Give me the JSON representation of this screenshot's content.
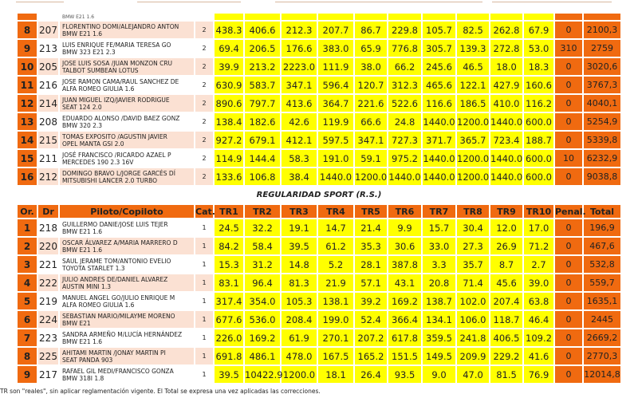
{
  "top_table": {
    "partial_row": {
      "vehicle": "BMW E21 1.6"
    },
    "rows": [
      {
        "or": "8",
        "dr": "207",
        "piloto": "FLORENTINO DOMI/ALEJANDRO ANTON",
        "coche": "BMW E21 1.6",
        "cat": "2",
        "tr": [
          "438.3",
          "406.6",
          "212.3",
          "207.7",
          "86.7",
          "229.8",
          "105.7",
          "82.5",
          "262.8",
          "67.9"
        ],
        "penal": "0",
        "total": "2100,3"
      },
      {
        "or": "9",
        "dr": "213",
        "piloto": "LUIS ENRIQUE FE/MARIA TERESA GO",
        "coche": "BMW 323 E21 2.3",
        "cat": "2",
        "tr": [
          "69.4",
          "206.5",
          "176.6",
          "383.0",
          "65.9",
          "776.8",
          "305.7",
          "139.3",
          "272.8",
          "53.0"
        ],
        "penal": "310",
        "total": "2759"
      },
      {
        "or": "10",
        "dr": "205",
        "piloto": "JOSE LUIS SOSA /JUAN MONZON CRU",
        "coche": "TALBOT SUMBEAN LOTUS",
        "cat": "2",
        "tr": [
          "39.9",
          "213.2",
          "2223.0",
          "111.9",
          "38.0",
          "66.2",
          "245.6",
          "46.5",
          "18.0",
          "18.3"
        ],
        "penal": "0",
        "total": "3020,6"
      },
      {
        "or": "11",
        "dr": "216",
        "piloto": "JOSE RAMON CAMA/RAUL SANCHEZ DE",
        "coche": "ALFA ROMEO GIULIA 1.6",
        "cat": "2",
        "tr": [
          "630.9",
          "583.7",
          "347.1",
          "596.4",
          "120.7",
          "312.3",
          "465.6",
          "122.1",
          "427.9",
          "160.6"
        ],
        "penal": "0",
        "total": "3767,3"
      },
      {
        "or": "12",
        "dr": "214",
        "piloto": "JUAN MIGUEL IZQ/JAVIER RODRIGUE",
        "coche": "SEAT 124 2.0",
        "cat": "2",
        "tr": [
          "890.6",
          "797.7",
          "413.6",
          "364.7",
          "221.6",
          "522.6",
          "116.6",
          "186.5",
          "410.0",
          "116.2"
        ],
        "penal": "0",
        "total": "4040,1"
      },
      {
        "or": "13",
        "dr": "208",
        "piloto": "EDUARDO ALONSO /DAVID BAEZ GONZ",
        "coche": "BMW 320 2.3",
        "cat": "2",
        "tr": [
          "138.4",
          "182.6",
          "42.6",
          "119.9",
          "66.6",
          "24.8",
          "1440.0",
          "1200.0",
          "1440.0",
          "600.0"
        ],
        "penal": "0",
        "total": "5254,9"
      },
      {
        "or": "14",
        "dr": "215",
        "piloto": "TOMAS EXPOSITO /AGUSTIN JAVIER",
        "coche": "OPEL MANTA GSI 2.0",
        "cat": "2",
        "tr": [
          "927.2",
          "679.1",
          "412.1",
          "597.5",
          "347.1",
          "727.3",
          "371.7",
          "365.7",
          "723.4",
          "188.7"
        ],
        "penal": "0",
        "total": "5339,8"
      },
      {
        "or": "15",
        "dr": "211",
        "piloto": "JOSÉ FRANCISCO /RICARDO AZAEL P",
        "coche": "MERCEDES 190 2.3 16V",
        "cat": "2",
        "tr": [
          "114.9",
          "144.4",
          "58.3",
          "191.0",
          "59.1",
          "975.2",
          "1440.0",
          "1200.0",
          "1440.0",
          "600.0"
        ],
        "penal": "10",
        "total": "6232,9"
      },
      {
        "or": "16",
        "dr": "212",
        "piloto": "DOMINGO BRAVO L/JORGE GARCÉS DÍ",
        "coche": "MITSUBISHI LANCER 2.0 TURBO",
        "cat": "2",
        "tr": [
          "133.6",
          "106.8",
          "38.4",
          "1440.0",
          "1200.0",
          "1440.0",
          "1440.0",
          "1200.0",
          "1440.0",
          "600.0"
        ],
        "penal": "0",
        "total": "9038,8"
      }
    ]
  },
  "section_title": "REGULARIDAD SPORT (R.S.)",
  "bottom_table": {
    "headers": [
      "Or.",
      "Dr",
      "Piloto/Copiloto",
      "Cat.",
      "TR1",
      "TR2",
      "TR3",
      "TR4",
      "TR5",
      "TR6",
      "TR7",
      "TR8",
      "TR9",
      "TR10",
      "Penal.",
      "Total"
    ],
    "rows": [
      {
        "or": "1",
        "dr": "218",
        "piloto": "GUILLERMO DANIE/JOSE LUIS TEJER",
        "coche": "BMW E21 1.6",
        "cat": "1",
        "tr": [
          "24.5",
          "32.2",
          "19.1",
          "14.7",
          "21.4",
          "9.9",
          "15.7",
          "30.4",
          "12.0",
          "17.0"
        ],
        "penal": "0",
        "total": "196,9"
      },
      {
        "or": "2",
        "dr": "220",
        "piloto": "OSCAR ÁLVAREZ A/MARIA MARRERO D",
        "coche": "BMW E21 1.6",
        "cat": "1",
        "tr": [
          "84.2",
          "58.4",
          "39.5",
          "61.2",
          "35.3",
          "30.6",
          "33.0",
          "27.3",
          "26.9",
          "71.2"
        ],
        "penal": "0",
        "total": "467,6"
      },
      {
        "or": "3",
        "dr": "221",
        "piloto": "SAUL JERAME TOM/ANTONIO EVELIO",
        "coche": "TOYOTA STARLET 1.3",
        "cat": "1",
        "tr": [
          "15.3",
          "31.2",
          "14.8",
          "5.2",
          "28.1",
          "387.8",
          "3.3",
          "35.7",
          "8.7",
          "2.7"
        ],
        "penal": "0",
        "total": "532,8"
      },
      {
        "or": "4",
        "dr": "222",
        "piloto": "JULIO ANDRES DE/DANIEL ALVAREZ",
        "coche": "AUSTIN MINI 1.3",
        "cat": "1",
        "tr": [
          "83.1",
          "96.4",
          "81.3",
          "21.9",
          "57.1",
          "43.1",
          "20.8",
          "71.4",
          "45.6",
          "39.0"
        ],
        "penal": "0",
        "total": "559,7"
      },
      {
        "or": "5",
        "dr": "219",
        "piloto": "MANUEL ANGEL GO/JULIO ENRIQUE M",
        "coche": "ALFA ROMEO GIULIA 1.6",
        "cat": "1",
        "tr": [
          "317.4",
          "354.0",
          "105.3",
          "138.1",
          "39.2",
          "169.2",
          "138.7",
          "102.0",
          "207.4",
          "63.8"
        ],
        "penal": "0",
        "total": "1635,1"
      },
      {
        "or": "6",
        "dr": "224",
        "piloto": "SEBASTIAN MARIO/MILAYME MORENO",
        "coche": "BMW E21",
        "cat": "1",
        "tr": [
          "677.6",
          "536.0",
          "208.4",
          "199.0",
          "52.4",
          "366.4",
          "134.1",
          "106.0",
          "118.7",
          "46.4"
        ],
        "penal": "0",
        "total": "2445"
      },
      {
        "or": "7",
        "dr": "223",
        "piloto": "SANDRA ARMEÑO M/LUCÍA HERNÁNDEZ",
        "coche": "BMW E21 1.6",
        "cat": "1",
        "tr": [
          "226.0",
          "169.2",
          "61.9",
          "270.1",
          "207.2",
          "617.8",
          "359.5",
          "241.8",
          "406.5",
          "109.2"
        ],
        "penal": "0",
        "total": "2669,2"
      },
      {
        "or": "8",
        "dr": "225",
        "piloto": "AHITAMI MARTIN /JONAY MARTIN PI",
        "coche": "SEAT PANDA 903",
        "cat": "1",
        "tr": [
          "691.8",
          "486.1",
          "478.0",
          "167.5",
          "165.2",
          "151.5",
          "149.5",
          "209.9",
          "229.2",
          "41.6"
        ],
        "penal": "0",
        "total": "2770,3"
      },
      {
        "or": "9",
        "dr": "217",
        "piloto": "RAFAEL GIL MEDI/FRANCISCO GONZA",
        "coche": "BMW 318I 1.8",
        "cat": "1",
        "tr": [
          "39.5",
          "10422.9",
          "1200.0",
          "18.1",
          "26.4",
          "93.5",
          "9.0",
          "47.0",
          "81.5",
          "76.9"
        ],
        "penal": "0",
        "total": "12014,8"
      }
    ]
  },
  "footer": "TR son \"reales\", sin aplicar reglamentación vigente. El Total se expresa una vez aplicadas las correcciones.",
  "colors": {
    "orange": "#f06a10",
    "yellow": "#ffff00",
    "pink": "#fbe1d3"
  }
}
